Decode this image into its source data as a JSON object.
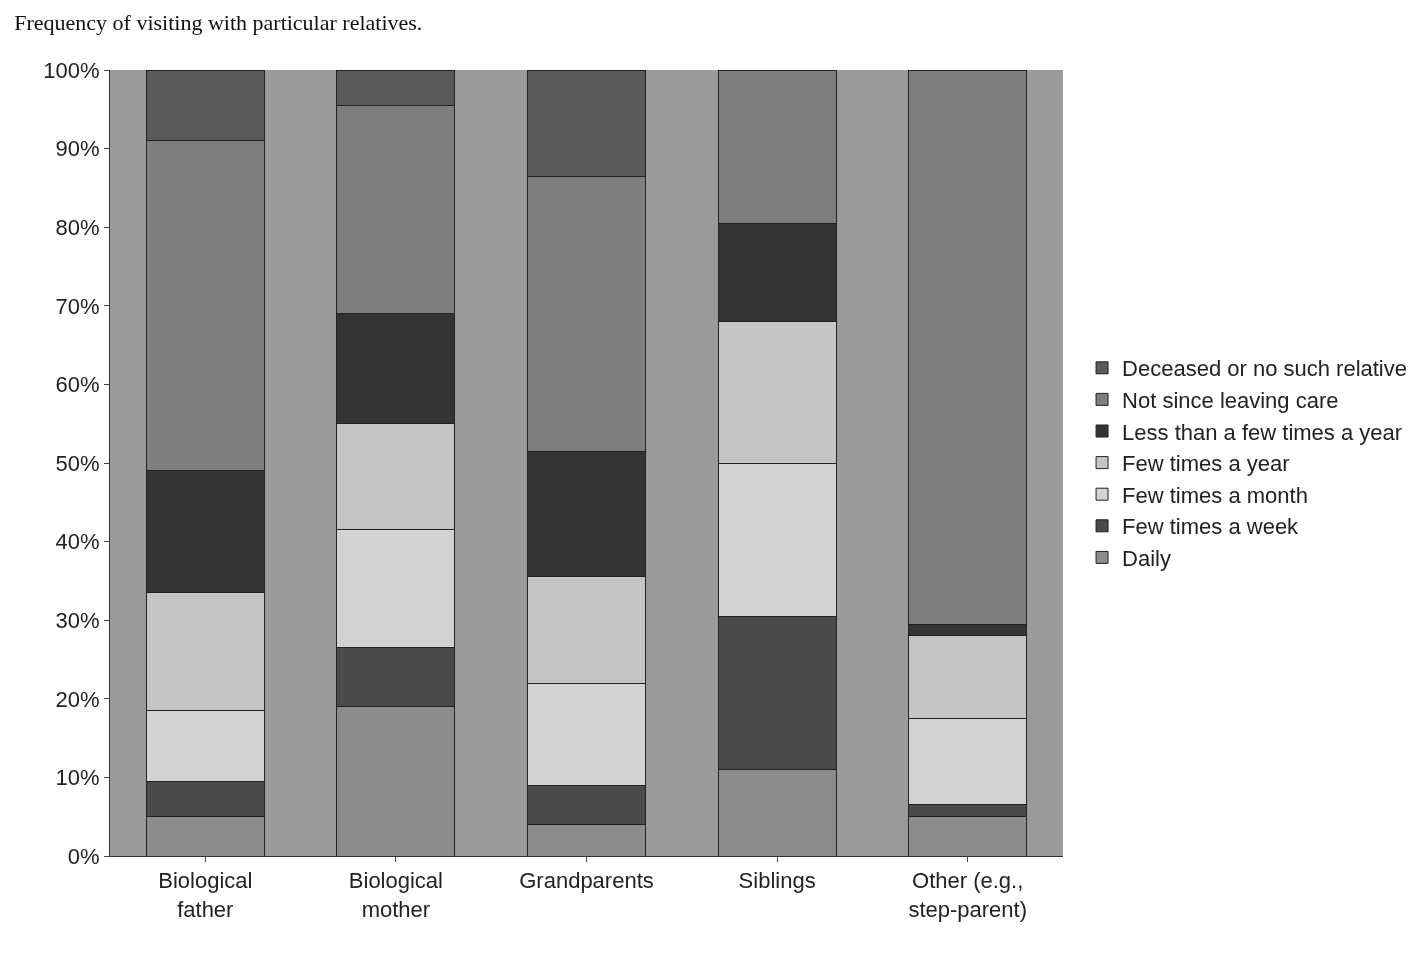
{
  "chart_data": {
    "type": "bar",
    "stacked": true,
    "title": "Frequency of visiting with particular relatives.",
    "categories": [
      "Biological father",
      "Biological mother",
      "Grandparents",
      "Siblings",
      "Other (e.g., step-parent)"
    ],
    "series": [
      {
        "name": "Daily",
        "color": "#8c8c8c",
        "values": [
          5,
          19,
          4,
          11,
          5
        ]
      },
      {
        "name": "Few times a week",
        "color": "#4a4a4a",
        "values": [
          4.5,
          7.5,
          5,
          19.5,
          1.5
        ]
      },
      {
        "name": "Few times a month",
        "color": "#d2d2d2",
        "values": [
          9,
          15,
          13,
          19.5,
          11
        ]
      },
      {
        "name": "Few times a year",
        "color": "#c4c4c4",
        "values": [
          15,
          13.5,
          13.5,
          18,
          10.5
        ]
      },
      {
        "name": "Less than a few times a year",
        "color": "#333333",
        "values": [
          15.5,
          14,
          16,
          12.5,
          1.5
        ]
      },
      {
        "name": "Not since leaving care",
        "color": "#7e7e7e",
        "values": [
          42,
          26.5,
          35,
          19.5,
          70.5
        ]
      },
      {
        "name": "Deceased or no such relative",
        "color": "#5a5a5a",
        "values": [
          9,
          4.5,
          13.5,
          0,
          0
        ]
      }
    ],
    "ylim": [
      0,
      100
    ],
    "yticks": [
      {
        "value": 0,
        "label": "0%"
      },
      {
        "value": 10,
        "label": "10%"
      },
      {
        "value": 20,
        "label": "20%"
      },
      {
        "value": 30,
        "label": "30%"
      },
      {
        "value": 40,
        "label": "40%"
      },
      {
        "value": 50,
        "label": "50%"
      },
      {
        "value": 60,
        "label": "60%"
      },
      {
        "value": 70,
        "label": "70%"
      },
      {
        "value": 80,
        "label": "80%"
      },
      {
        "value": 90,
        "label": "90%"
      },
      {
        "value": 100,
        "label": "100%"
      }
    ],
    "legend": "right"
  }
}
